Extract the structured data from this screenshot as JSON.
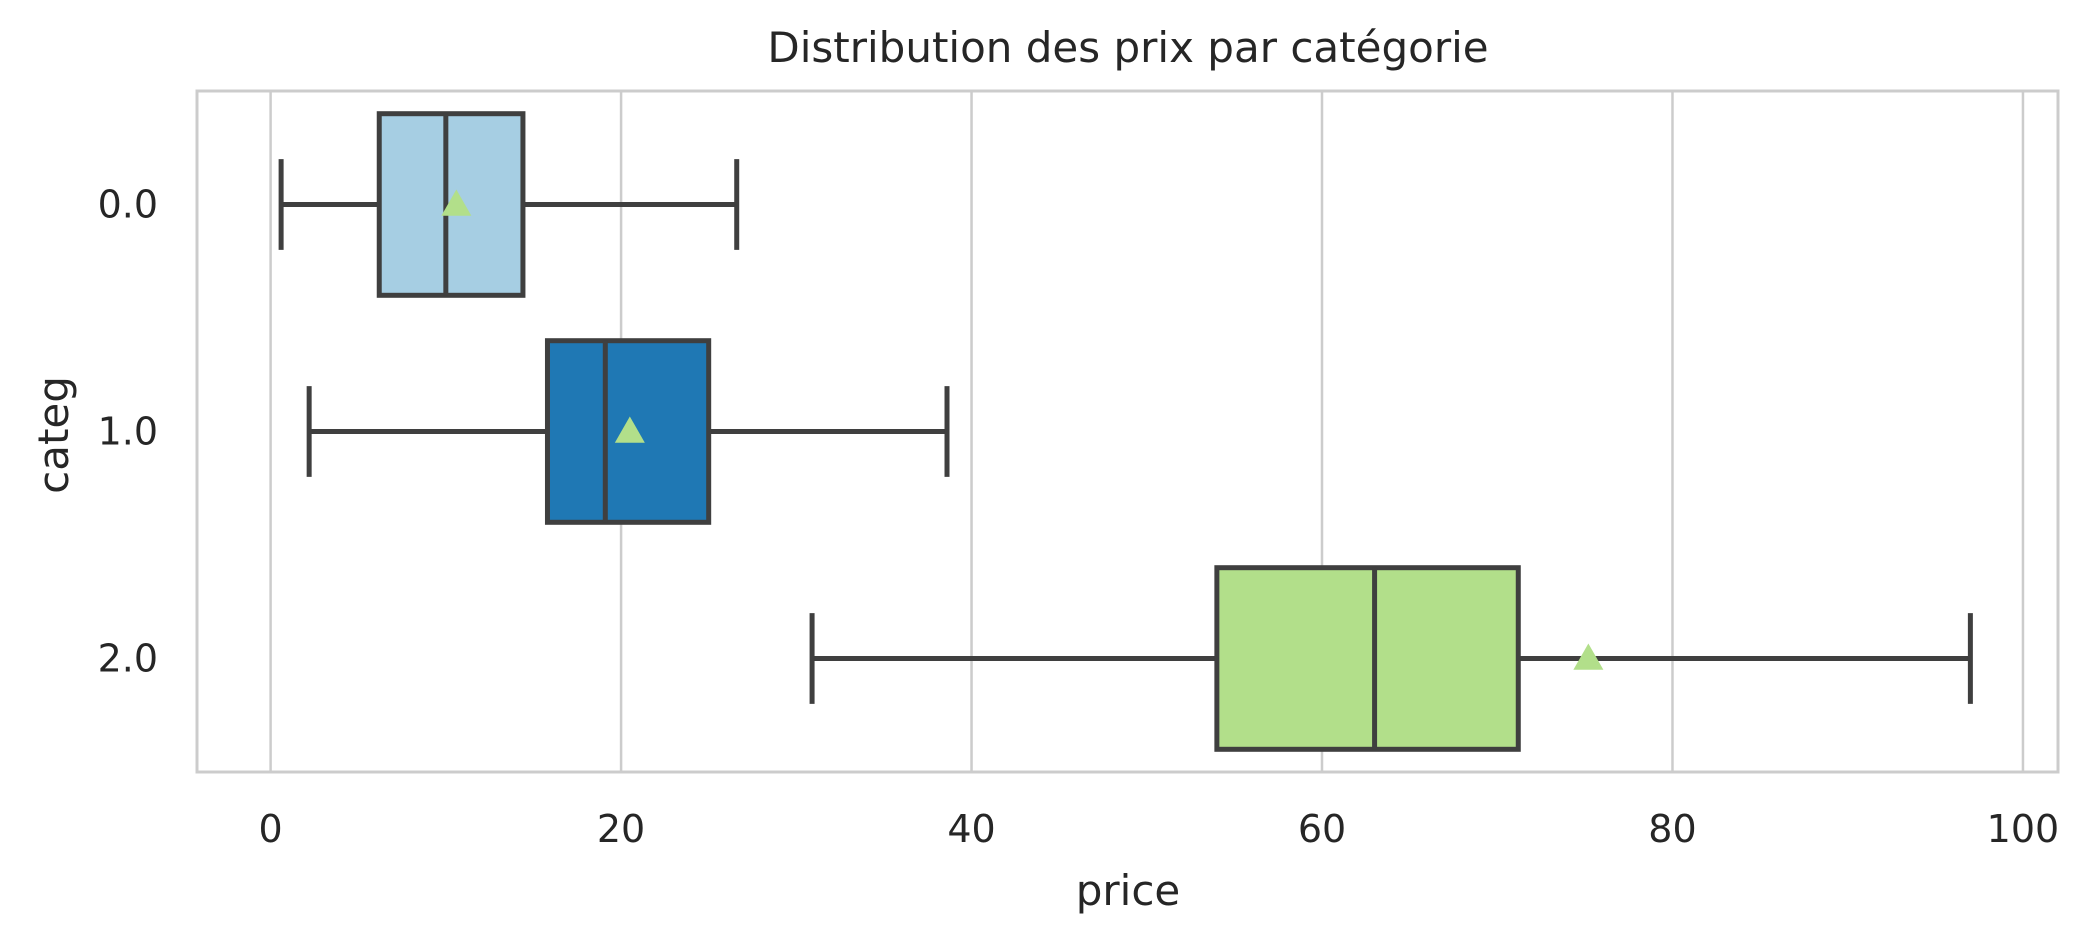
{
  "chart_data": {
    "type": "boxplot",
    "orientation": "horizontal",
    "title": "Distribution des prix par catégorie",
    "xlabel": "price",
    "ylabel": "categ",
    "xlim": [
      -4.2,
      102
    ],
    "x_ticks": [
      0,
      20,
      40,
      60,
      80,
      100
    ],
    "x_tick_labels": [
      "0",
      "20",
      "40",
      "60",
      "80",
      "100"
    ],
    "categories": [
      "0.0",
      "1.0",
      "2.0"
    ],
    "grid": "vertical",
    "series": [
      {
        "category": "0.0",
        "color": "#a6cee3",
        "whisker_low": 0.6,
        "q1": 6.2,
        "median": 10.0,
        "q3": 14.4,
        "whisker_high": 26.6,
        "mean": 10.6
      },
      {
        "category": "1.0",
        "color": "#1f78b4",
        "whisker_low": 2.2,
        "q1": 15.8,
        "median": 19.1,
        "q3": 25.0,
        "whisker_high": 38.6,
        "mean": 20.5
      },
      {
        "category": "2.0",
        "color": "#b2df8a",
        "whisker_low": 30.9,
        "q1": 54.0,
        "median": 63.0,
        "q3": 71.2,
        "whisker_high": 97.0,
        "mean": 75.2
      }
    ],
    "mean_marker_color": "#b2df8a",
    "line_color": "#3f3f3f"
  }
}
